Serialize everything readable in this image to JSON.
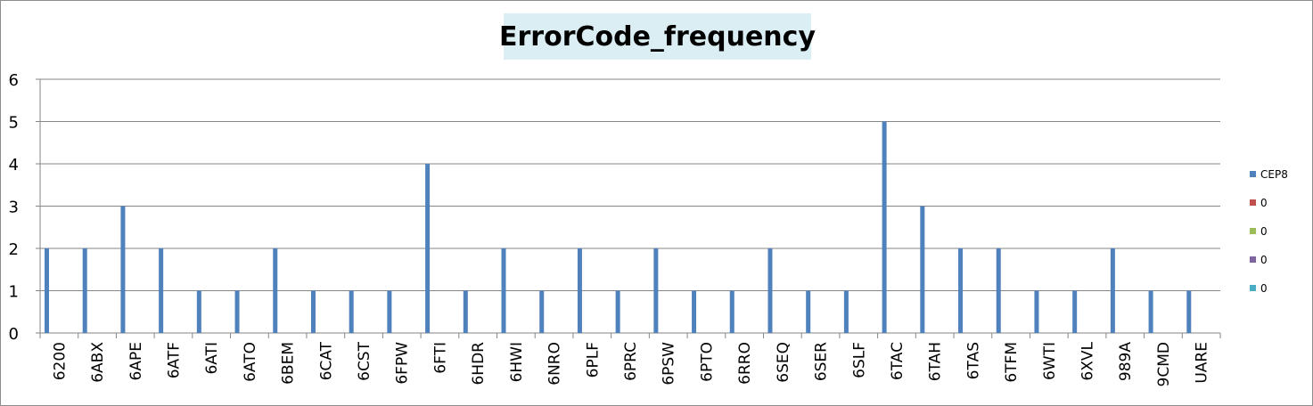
{
  "chart_data": {
    "type": "bar",
    "title": "ErrorCode_frequency",
    "xlabel": "",
    "ylabel": "",
    "ylim": [
      0,
      6
    ],
    "yticks": [
      0,
      1,
      2,
      3,
      4,
      5,
      6
    ],
    "grid": true,
    "legend_position": "right",
    "categories": [
      "6200",
      "6ABX",
      "6APE",
      "6ATF",
      "6ATI",
      "6ATO",
      "6BEM",
      "6CAT",
      "6CST",
      "6FPW",
      "6FTI",
      "6HDR",
      "6HWI",
      "6NRO",
      "6PLF",
      "6PRC",
      "6PSW",
      "6PTO",
      "6RRO",
      "6SEQ",
      "6SER",
      "6SLF",
      "6TAC",
      "6TAH",
      "6TAS",
      "6TFM",
      "6WTI",
      "6XVL",
      "989A",
      "9CMD",
      "UARE"
    ],
    "series": [
      {
        "name": "CEP8",
        "color": "#4f81bd",
        "values": [
          2,
          2,
          3,
          2,
          1,
          1,
          2,
          1,
          1,
          1,
          4,
          1,
          2,
          1,
          2,
          1,
          2,
          1,
          1,
          2,
          1,
          1,
          5,
          3,
          2,
          2,
          1,
          1,
          2,
          1,
          1
        ]
      },
      {
        "name": "0",
        "color": "#c0504d",
        "values": [
          0,
          0,
          0,
          0,
          0,
          0,
          0,
          0,
          0,
          0,
          0,
          0,
          0,
          0,
          0,
          0,
          0,
          0,
          0,
          0,
          0,
          0,
          0,
          0,
          0,
          0,
          0,
          0,
          0,
          0,
          0
        ]
      },
      {
        "name": "0",
        "color": "#9bbb59",
        "values": [
          0,
          0,
          0,
          0,
          0,
          0,
          0,
          0,
          0,
          0,
          0,
          0,
          0,
          0,
          0,
          0,
          0,
          0,
          0,
          0,
          0,
          0,
          0,
          0,
          0,
          0,
          0,
          0,
          0,
          0,
          0
        ]
      },
      {
        "name": "0",
        "color": "#8064a2",
        "values": [
          0,
          0,
          0,
          0,
          0,
          0,
          0,
          0,
          0,
          0,
          0,
          0,
          0,
          0,
          0,
          0,
          0,
          0,
          0,
          0,
          0,
          0,
          0,
          0,
          0,
          0,
          0,
          0,
          0,
          0,
          0
        ]
      },
      {
        "name": "0",
        "color": "#4bacc6",
        "values": [
          0,
          0,
          0,
          0,
          0,
          0,
          0,
          0,
          0,
          0,
          0,
          0,
          0,
          0,
          0,
          0,
          0,
          0,
          0,
          0,
          0,
          0,
          0,
          0,
          0,
          0,
          0,
          0,
          0,
          0,
          0
        ]
      }
    ]
  }
}
